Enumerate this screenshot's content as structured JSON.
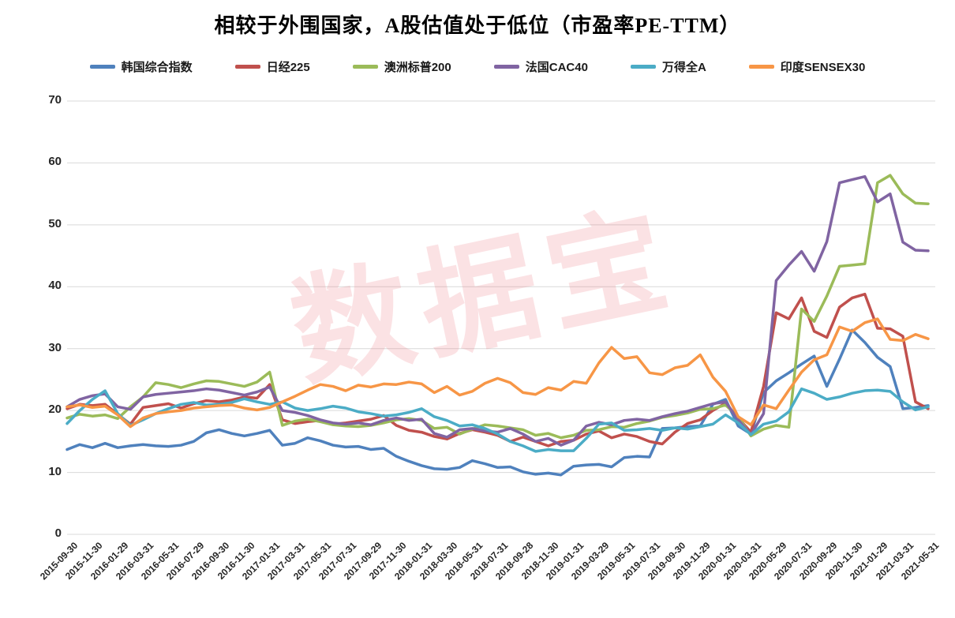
{
  "title": "相较于外围国家，A股估值处于低位（市盈率PE-TTM）",
  "watermark": "数据宝",
  "chart_data": {
    "type": "line",
    "title": "相较于外围国家，A股估值处于低位（市盈率PE-TTM）",
    "xlabel": "",
    "ylabel": "",
    "ylim": [
      0,
      70
    ],
    "y_ticks": [
      0,
      10,
      20,
      30,
      40,
      50,
      60,
      70
    ],
    "grid": "horizontal",
    "legend_position": "top",
    "x_tick_labels": [
      "2015-09-30",
      "2015-11-30",
      "2016-01-29",
      "2016-03-31",
      "2016-05-31",
      "2016-07-29",
      "2016-09-30",
      "2016-11-30",
      "2017-01-31",
      "2017-03-31",
      "2017-05-31",
      "2017-07-31",
      "2017-09-29",
      "2017-11-30",
      "2018-01-31",
      "2018-03-30",
      "2018-05-31",
      "2018-07-31",
      "2018-09-28",
      "2018-11-30",
      "2019-01-31",
      "2019-03-29",
      "2019-05-31",
      "2019-07-31",
      "2019-09-30",
      "2019-11-29",
      "2020-01-31",
      "2020-03-31",
      "2020-05-29",
      "2020-07-31",
      "2020-09-29",
      "2020-11-30",
      "2021-01-29",
      "2021-03-31",
      "2021-05-31"
    ],
    "dates": [
      "2015-09-30",
      "2015-10-30",
      "2015-11-30",
      "2015-12-31",
      "2016-01-29",
      "2016-02-29",
      "2016-03-31",
      "2016-04-29",
      "2016-05-31",
      "2016-06-30",
      "2016-07-29",
      "2016-08-31",
      "2016-09-30",
      "2016-10-31",
      "2016-11-30",
      "2016-12-30",
      "2017-01-31",
      "2017-02-28",
      "2017-03-31",
      "2017-04-28",
      "2017-05-31",
      "2017-06-30",
      "2017-07-31",
      "2017-08-31",
      "2017-09-29",
      "2017-10-31",
      "2017-11-30",
      "2017-12-29",
      "2018-01-31",
      "2018-02-28",
      "2018-03-30",
      "2018-04-30",
      "2018-05-31",
      "2018-06-29",
      "2018-07-31",
      "2018-08-31",
      "2018-09-28",
      "2018-10-31",
      "2018-11-30",
      "2018-12-28",
      "2019-01-31",
      "2019-02-28",
      "2019-03-29",
      "2019-04-30",
      "2019-05-31",
      "2019-06-28",
      "2019-07-31",
      "2019-08-30",
      "2019-09-30",
      "2019-10-31",
      "2019-11-29",
      "2019-12-31",
      "2020-01-31",
      "2020-02-28",
      "2020-03-31",
      "2020-04-30",
      "2020-05-29",
      "2020-06-30",
      "2020-07-31",
      "2020-08-31",
      "2020-09-29",
      "2020-10-30",
      "2020-11-30",
      "2020-12-31",
      "2021-01-29",
      "2021-02-26",
      "2021-03-31",
      "2021-04-30",
      "2021-05-31"
    ],
    "series": [
      {
        "name": "韩国综合指数",
        "color": "#4F81BD",
        "values": [
          13.7,
          14.5,
          14.0,
          14.7,
          14.0,
          14.3,
          14.5,
          14.3,
          14.2,
          14.4,
          15.0,
          16.4,
          16.9,
          16.3,
          15.9,
          16.3,
          16.8,
          14.4,
          14.7,
          15.6,
          15.1,
          14.4,
          14.1,
          14.2,
          13.7,
          13.9,
          12.6,
          11.8,
          11.1,
          10.6,
          10.5,
          10.8,
          11.9,
          11.4,
          10.8,
          10.9,
          10.1,
          9.7,
          9.9,
          9.6,
          11.0,
          11.2,
          11.3,
          10.9,
          12.4,
          12.6,
          12.5,
          17.1,
          17.2,
          17.4,
          17.5,
          21.0,
          21.8,
          17.5,
          16.2,
          22.9,
          24.8,
          26.1,
          27.5,
          28.8,
          23.9,
          28.3,
          33.0,
          31.0,
          28.6,
          27.1,
          20.3,
          20.5,
          20.8
        ]
      },
      {
        "name": "日经225",
        "color": "#C0504D",
        "values": [
          20.3,
          21.0,
          20.8,
          21.0,
          19.4,
          17.8,
          20.5,
          20.8,
          21.1,
          20.4,
          21.1,
          21.6,
          21.4,
          21.7,
          22.2,
          22.0,
          24.2,
          18.5,
          17.9,
          18.2,
          18.4,
          17.8,
          18.0,
          18.3,
          18.6,
          19.2,
          17.6,
          16.8,
          16.5,
          15.8,
          15.4,
          16.3,
          16.9,
          16.5,
          16.0,
          15.0,
          15.7,
          15.0,
          14.3,
          15.0,
          15.2,
          16.2,
          16.7,
          15.6,
          16.2,
          15.8,
          15.0,
          14.6,
          16.5,
          17.9,
          18.5,
          20.0,
          21.2,
          18.8,
          16.5,
          23.9,
          35.8,
          34.8,
          38.2,
          32.8,
          31.8,
          36.7,
          38.2,
          38.8,
          33.3,
          33.2,
          32.0,
          21.4,
          20.3
        ]
      },
      {
        "name": "澳洲标普200",
        "color": "#9BBB59",
        "values": [
          18.8,
          19.4,
          19.1,
          19.3,
          18.7,
          20.6,
          22.2,
          24.5,
          24.2,
          23.7,
          24.3,
          24.8,
          24.7,
          24.3,
          23.9,
          24.6,
          26.2,
          17.6,
          18.3,
          18.6,
          18.2,
          17.7,
          17.5,
          17.4,
          17.6,
          18.0,
          18.5,
          18.7,
          18.4,
          17.1,
          17.3,
          16.2,
          17.0,
          17.7,
          17.5,
          17.2,
          16.9,
          16.0,
          16.3,
          15.6,
          16.0,
          16.8,
          16.9,
          17.4,
          17.3,
          17.9,
          18.3,
          18.9,
          19.2,
          19.6,
          20.2,
          20.3,
          20.9,
          19.0,
          15.9,
          17.0,
          17.6,
          17.3,
          36.4,
          34.4,
          38.5,
          43.3,
          43.5,
          43.7,
          56.8,
          58.0,
          55.0,
          53.5,
          53.4
        ]
      },
      {
        "name": "法国CAC40",
        "color": "#8064A2",
        "values": [
          20.6,
          21.8,
          22.4,
          22.7,
          20.6,
          20.2,
          22.2,
          22.6,
          22.8,
          23.0,
          23.2,
          23.5,
          23.3,
          22.9,
          22.5,
          23.0,
          23.8,
          20.0,
          19.7,
          19.2,
          18.5,
          18.0,
          17.8,
          18.0,
          17.7,
          18.4,
          18.8,
          18.4,
          18.6,
          16.3,
          15.7,
          16.9,
          17.1,
          16.7,
          16.5,
          17.1,
          16.2,
          15.0,
          15.5,
          14.4,
          15.2,
          17.5,
          18.1,
          17.7,
          18.4,
          18.6,
          18.4,
          19.0,
          19.5,
          19.9,
          20.5,
          21.1,
          21.4,
          18.5,
          16.1,
          19.5,
          41.0,
          43.5,
          45.7,
          42.5,
          47.3,
          56.8,
          57.3,
          57.8,
          53.7,
          55.0,
          47.2,
          45.9,
          45.8
        ]
      },
      {
        "name": "万得全A",
        "color": "#4BACC6",
        "values": [
          17.9,
          20.0,
          21.8,
          23.2,
          19.5,
          17.6,
          18.5,
          19.5,
          20.3,
          21.0,
          21.3,
          20.9,
          21.0,
          21.3,
          21.9,
          21.4,
          21.0,
          21.4,
          20.4,
          20.0,
          20.3,
          20.7,
          20.4,
          19.8,
          19.5,
          19.1,
          19.3,
          19.7,
          20.3,
          19.0,
          18.4,
          17.5,
          17.7,
          17.1,
          16.2,
          15.0,
          14.3,
          13.4,
          13.7,
          13.5,
          13.5,
          15.5,
          17.8,
          18.0,
          16.8,
          16.9,
          17.1,
          16.8,
          17.2,
          17.0,
          17.4,
          17.8,
          19.3,
          18.0,
          16.1,
          17.8,
          18.3,
          19.8,
          23.5,
          22.8,
          21.8,
          22.2,
          22.8,
          23.2,
          23.3,
          23.1,
          21.4,
          20.1,
          20.6
        ]
      },
      {
        "name": "印度SENSEX30",
        "color": "#F79646",
        "values": [
          20.6,
          20.9,
          20.5,
          20.7,
          19.3,
          17.4,
          18.8,
          19.5,
          19.8,
          20.0,
          20.4,
          20.6,
          20.8,
          20.9,
          20.4,
          20.1,
          20.5,
          21.4,
          22.3,
          23.3,
          24.2,
          23.9,
          23.2,
          24.1,
          23.8,
          24.3,
          24.2,
          24.6,
          24.3,
          22.9,
          23.9,
          22.5,
          23.1,
          24.4,
          25.2,
          24.5,
          22.9,
          22.6,
          23.7,
          23.3,
          24.7,
          24.4,
          27.7,
          30.2,
          28.4,
          28.7,
          26.1,
          25.8,
          26.9,
          27.3,
          29.0,
          25.4,
          23.1,
          19.0,
          17.7,
          20.9,
          20.3,
          23.3,
          26.2,
          28.2,
          29.0,
          33.5,
          32.8,
          34.2,
          34.8,
          31.5,
          31.3,
          32.3,
          31.6
        ]
      }
    ]
  },
  "colors": {
    "grid": "#D9D9D9",
    "axis_text": "#262626",
    "watermark_pink": "#E74C5A"
  }
}
